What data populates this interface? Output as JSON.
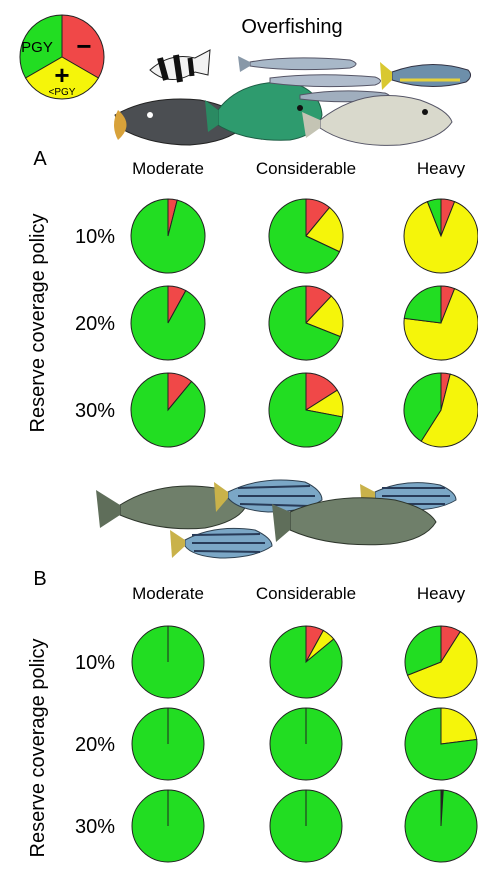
{
  "header": {
    "title": "Overfishing",
    "legend": {
      "labels": [
        "PGY",
        "−",
        "+",
        "<PGY"
      ],
      "colors": {
        "pgy": "#22dd22",
        "minus": "#f04848",
        "below_pgy": "#f5f50a"
      }
    }
  },
  "colors": {
    "green": "#22dd22",
    "red": "#f04848",
    "yellow": "#f5f50a",
    "outline": "#222222"
  },
  "chart_data": [
    {
      "type": "pie",
      "panel": "A",
      "columns": [
        "Moderate",
        "Considerable",
        "Heavy"
      ],
      "rows": [
        "10%",
        "20%",
        "30%"
      ],
      "ylabel": "Reserve coverage policy",
      "slices_order": [
        "red",
        "yellow",
        "green"
      ],
      "values": [
        [
          [
            0.04,
            0.0,
            0.96
          ],
          [
            0.11,
            0.21,
            0.68
          ],
          [
            0.06,
            0.88,
            0.06
          ]
        ],
        [
          [
            0.08,
            0.0,
            0.92
          ],
          [
            0.12,
            0.19,
            0.69
          ],
          [
            0.06,
            0.71,
            0.23
          ]
        ],
        [
          [
            0.11,
            0.0,
            0.89
          ],
          [
            0.16,
            0.12,
            0.72
          ],
          [
            0.04,
            0.55,
            0.41
          ]
        ]
      ]
    },
    {
      "type": "pie",
      "panel": "B",
      "columns": [
        "Moderate",
        "Considerable",
        "Heavy"
      ],
      "rows": [
        "10%",
        "20%",
        "30%"
      ],
      "ylabel": "Reserve coverage policy",
      "slices_order": [
        "red",
        "yellow",
        "green"
      ],
      "values": [
        [
          [
            0.0,
            0.0,
            1.0
          ],
          [
            0.08,
            0.06,
            0.86
          ],
          [
            0.09,
            0.6,
            0.31
          ]
        ],
        [
          [
            0.0,
            0.0,
            1.0
          ],
          [
            0.0,
            0.0,
            1.0
          ],
          [
            0.0,
            0.23,
            0.77
          ]
        ],
        [
          [
            0.0,
            0.0,
            1.0
          ],
          [
            0.0,
            0.0,
            1.0
          ],
          [
            0.005,
            0.005,
            0.99
          ]
        ]
      ]
    }
  ]
}
